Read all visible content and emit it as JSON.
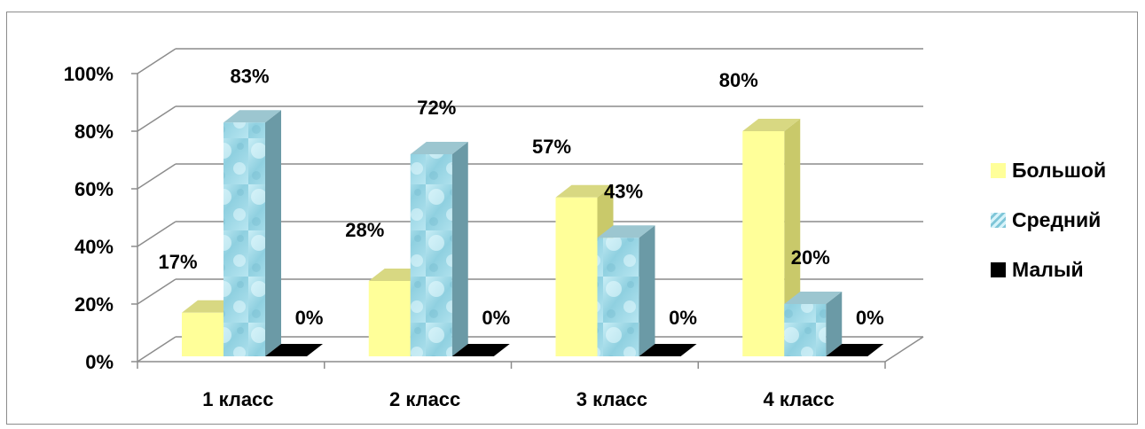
{
  "chart_data": {
    "type": "bar",
    "categories": [
      "1 класс",
      "2 класс",
      "3 класс",
      "4 класс"
    ],
    "series": [
      {
        "name": "Большой",
        "values": [
          17,
          28,
          57,
          80
        ]
      },
      {
        "name": "Средний",
        "values": [
          83,
          72,
          43,
          20
        ]
      },
      {
        "name": "Малый",
        "values": [
          0,
          0,
          0,
          0
        ]
      }
    ],
    "data_labels": [
      [
        "17%",
        "83%",
        "0%"
      ],
      [
        "28%",
        "72%",
        "0%"
      ],
      [
        "57%",
        "43%",
        "0%"
      ],
      [
        "80%",
        "20%",
        "0%"
      ]
    ],
    "y_ticks": [
      "0%",
      "20%",
      "40%",
      "60%",
      "80%",
      "100%"
    ],
    "ylim": [
      0,
      100
    ],
    "grid": true,
    "three_d": true,
    "legend_position": "right",
    "colors": {
      "Большой": "#ffff99",
      "Средний": "#a8dbe8",
      "Малый": "#000000"
    }
  }
}
